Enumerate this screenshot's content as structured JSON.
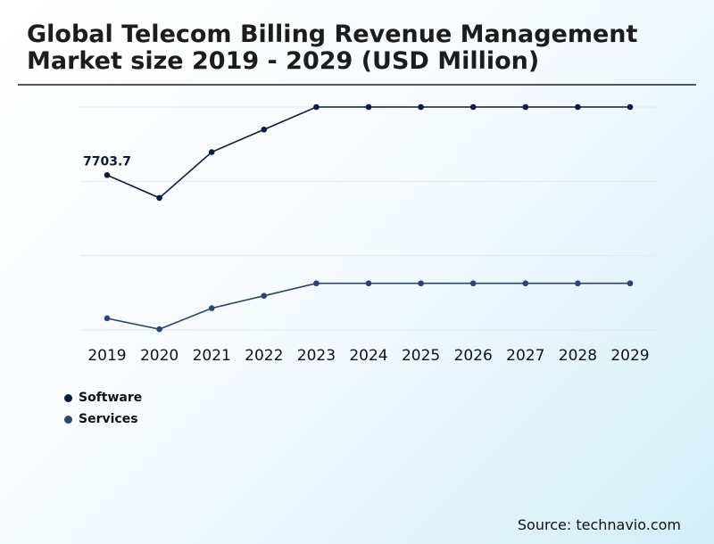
{
  "chart_data": {
    "type": "line",
    "title": "Global Telecom Billing Revenue Management Market size 2019 - 2029 (USD Million)",
    "categories": [
      "2019",
      "2020",
      "2021",
      "2022",
      "2023",
      "2024",
      "2025",
      "2026",
      "2027",
      "2028",
      "2029"
    ],
    "series": [
      {
        "name": "Software",
        "color": "#0d1b3e",
        "values": [
          7703.7,
          7410,
          8000,
          8290,
          8580,
          8580,
          8580,
          8580,
          8580,
          8580,
          8580
        ]
      },
      {
        "name": "Services",
        "color": "#2e4470",
        "values": [
          5860,
          5720,
          5990,
          6150,
          6310,
          6310,
          6310,
          6310,
          6310,
          6310,
          6310
        ]
      }
    ],
    "annotations": [
      {
        "series": 0,
        "index": 0,
        "text": "7703.7"
      }
    ],
    "ylim": [
      5710,
      8580
    ],
    "grid": true,
    "legend_position": "bottom-left",
    "xlabel": "",
    "ylabel": ""
  },
  "source": "Source: technavio.com"
}
